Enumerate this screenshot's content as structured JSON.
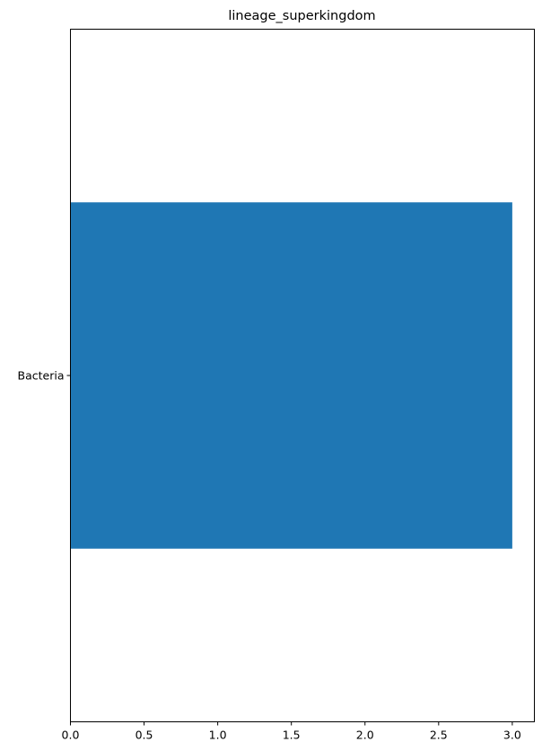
{
  "chart_data": {
    "type": "bar",
    "orientation": "horizontal",
    "title": "lineage_superkingdom",
    "xlabel": "",
    "ylabel": "",
    "categories": [
      "Bacteria"
    ],
    "values": [
      3
    ],
    "xlim": [
      0,
      3.15
    ],
    "xticks": [
      0.0,
      0.5,
      1.0,
      1.5,
      2.0,
      2.5,
      3.0
    ],
    "xtick_labels": [
      "0.0",
      "0.5",
      "1.0",
      "1.5",
      "2.0",
      "2.5",
      "3.0"
    ],
    "grid": false,
    "bar_color": "#1f77b4"
  }
}
